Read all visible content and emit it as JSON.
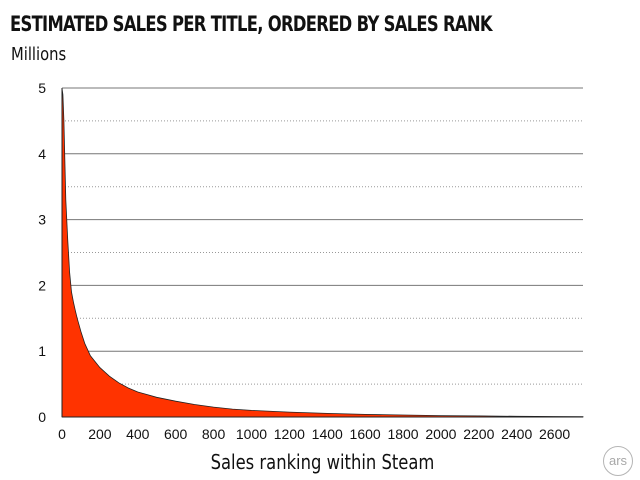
{
  "chart_data": {
    "type": "area",
    "title": "ESTIMATED SALES PER TITLE, ORDERED BY SALES RANK",
    "subtitle": "Millions",
    "xlabel": "Sales ranking within Steam",
    "ylabel": "",
    "xlim": [
      0,
      2750
    ],
    "ylim": [
      0,
      5
    ],
    "x_ticks": [
      0,
      200,
      400,
      600,
      800,
      1000,
      1200,
      1400,
      1600,
      1800,
      2000,
      2200,
      2400,
      2600
    ],
    "y_ticks": [
      0,
      1,
      2,
      3,
      4,
      5
    ],
    "grid": "horizontal",
    "fill_color": "#ff3300",
    "series": [
      {
        "x": [
          0,
          5,
          10,
          20,
          30,
          40,
          50,
          60,
          70,
          80,
          100,
          120,
          150,
          200,
          250,
          300,
          350,
          400,
          450,
          500,
          600,
          700,
          800,
          900,
          1000,
          1200,
          1400,
          1600,
          1800,
          2000,
          2200,
          2400,
          2600,
          2750
        ],
        "y": [
          5.0,
          4.9,
          4.5,
          3.3,
          2.7,
          2.2,
          1.9,
          1.75,
          1.62,
          1.5,
          1.3,
          1.12,
          0.93,
          0.75,
          0.62,
          0.52,
          0.44,
          0.38,
          0.34,
          0.3,
          0.24,
          0.19,
          0.15,
          0.12,
          0.1,
          0.075,
          0.055,
          0.04,
          0.03,
          0.022,
          0.016,
          0.011,
          0.007,
          0.005
        ]
      }
    ]
  },
  "logo_text": "ars"
}
